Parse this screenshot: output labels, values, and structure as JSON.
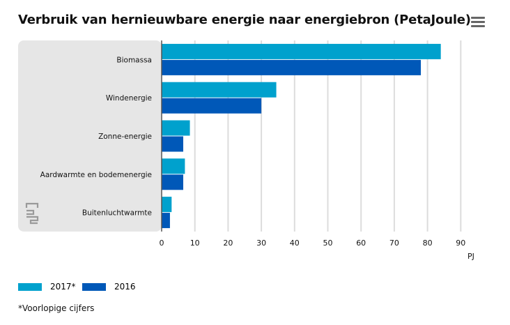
{
  "chart_data": {
    "type": "bar",
    "orientation": "horizontal",
    "title": "Verbruik van hernieuwbare energie naar energiebron (PetaJoule)",
    "categories": [
      "Biomassa",
      "Windenergie",
      "Zonne-energie",
      "Aardwarmte en bodemenergie",
      "Buitenluchtwarmte"
    ],
    "series": [
      {
        "name": "2017*",
        "values": [
          84,
          34.5,
          8.5,
          7,
          3
        ],
        "color": "#00a1cd"
      },
      {
        "name": "2016",
        "values": [
          78,
          30,
          6.5,
          6.5,
          2.5
        ],
        "color": "#0058b8"
      }
    ],
    "xlabel": "PJ",
    "xlim": [
      0,
      90
    ],
    "xticks": [
      0,
      10,
      20,
      30,
      40,
      50,
      60,
      70,
      80,
      90
    ],
    "grid": true,
    "legend_position": "bottom-left"
  },
  "footnote": "*Voorlopige cijfers",
  "icons": {
    "menu": "hamburger-menu-icon",
    "logo": "cbs-logo-icon"
  }
}
